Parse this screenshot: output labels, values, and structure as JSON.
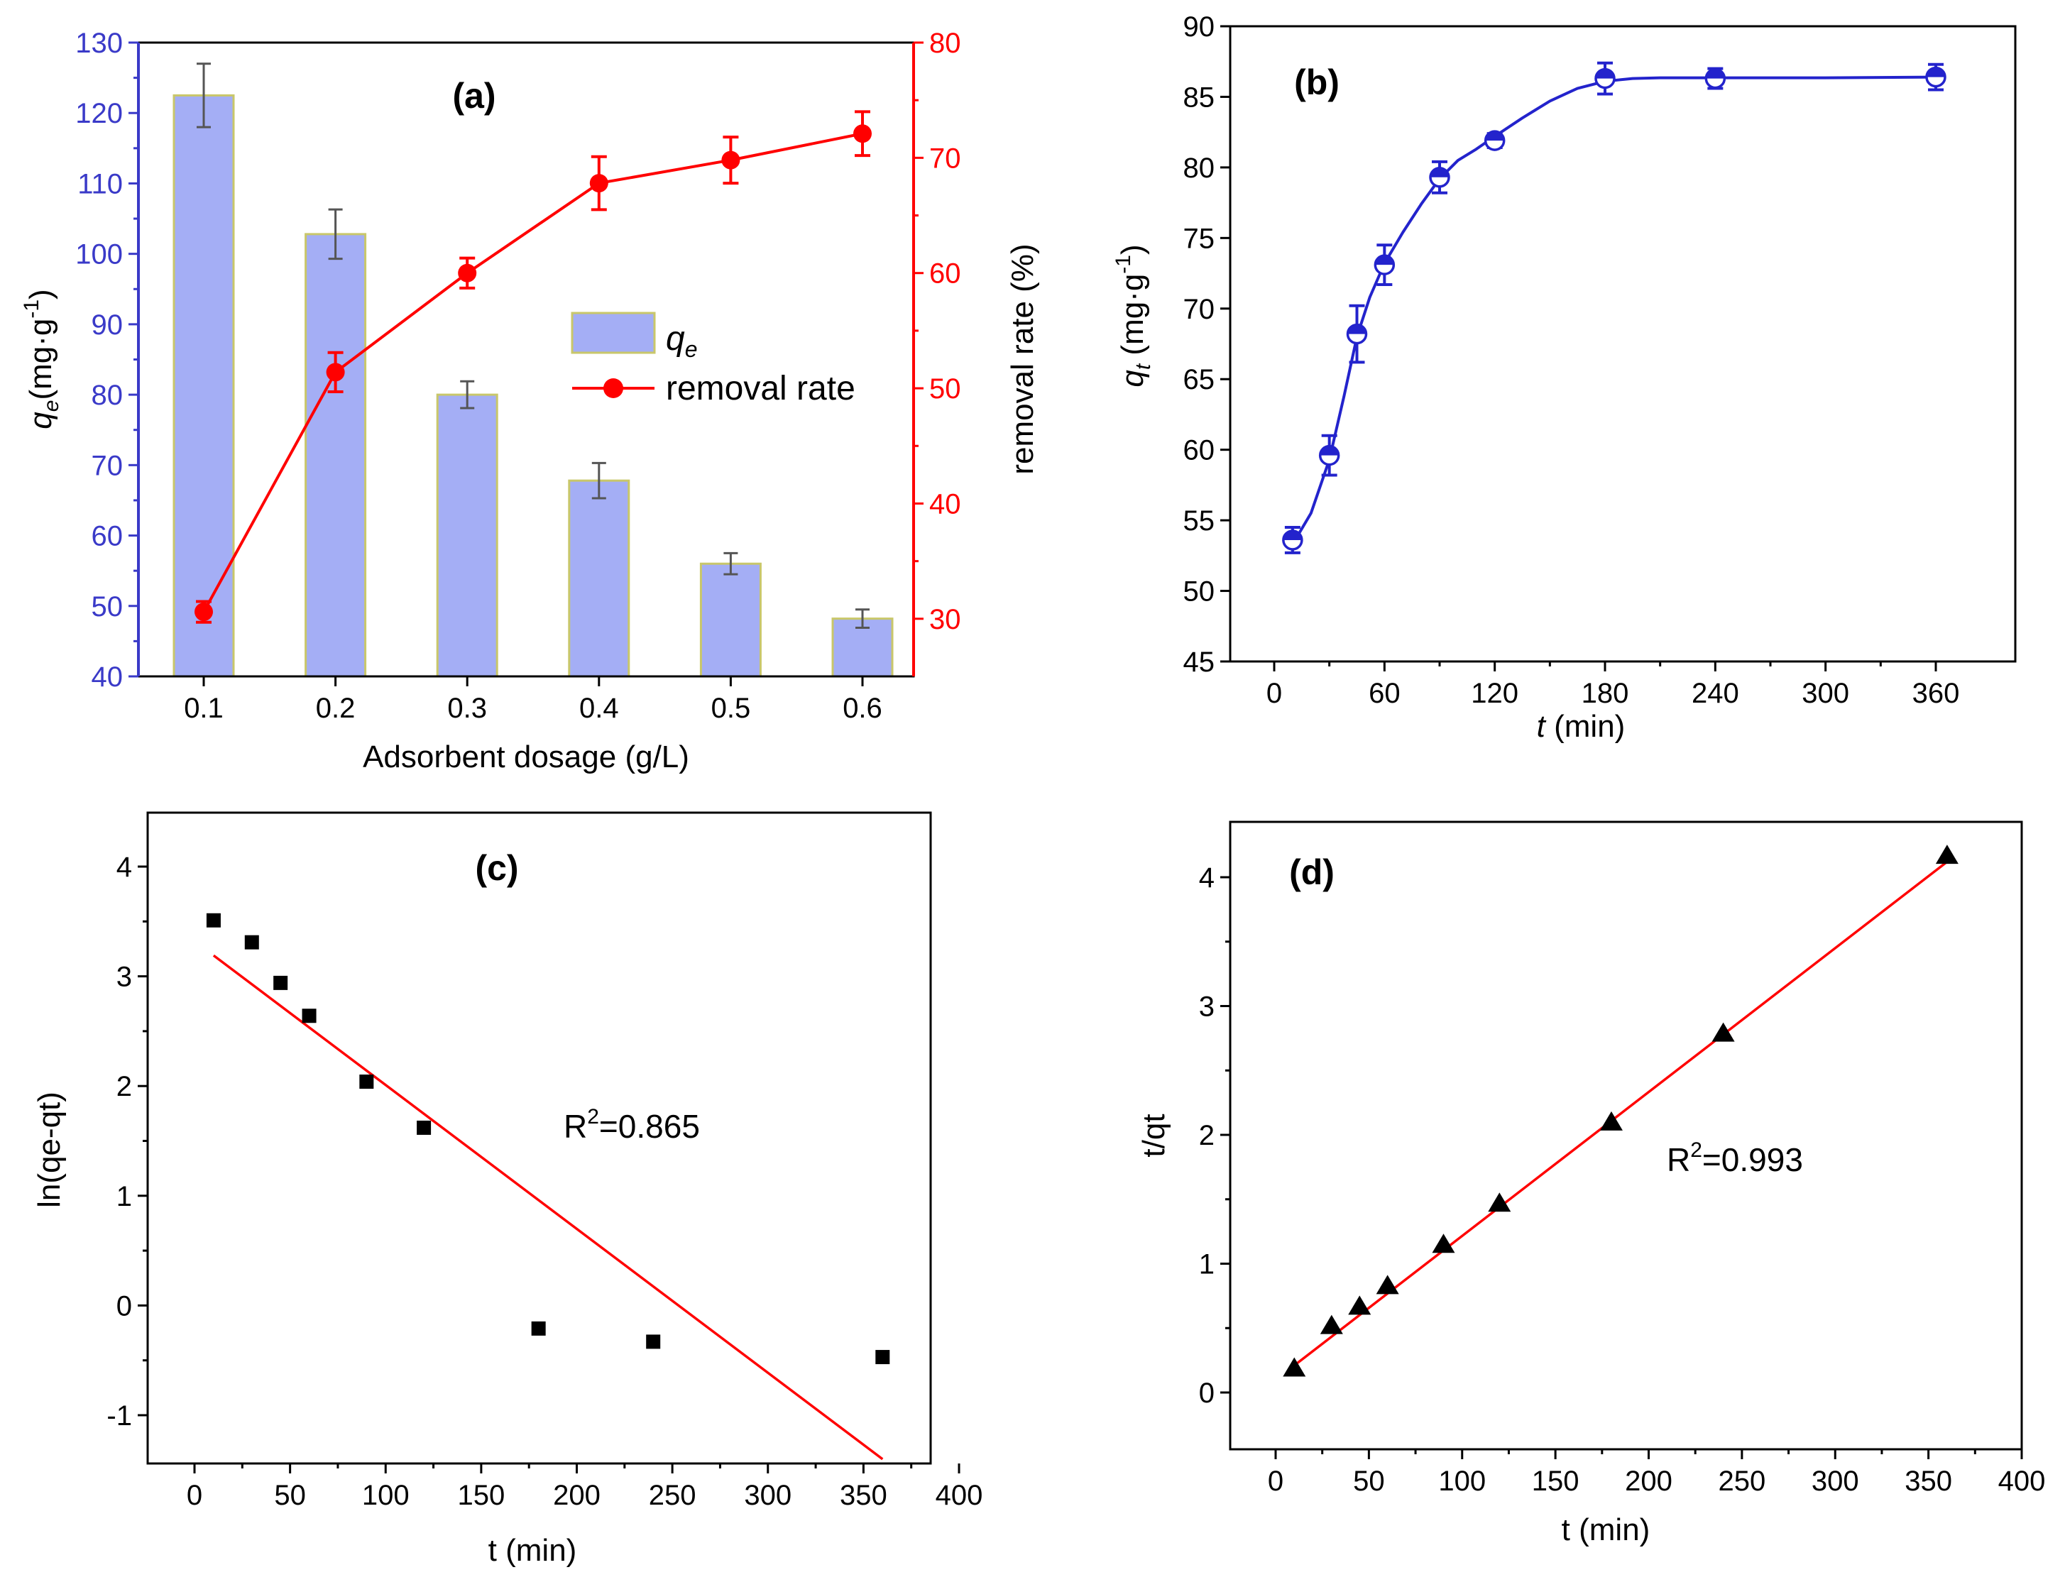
{
  "colors": {
    "blue": "#2323cc",
    "blue_axis": "#3a3ac8",
    "red": "#ff0000",
    "bar_fill": "#a4aef5",
    "bar_edge": "#c9c76a",
    "black": "#000000",
    "errbar_gray": "#555555"
  },
  "chart_data": [
    {
      "id": "a",
      "panel_label": "(a)",
      "type": "bar",
      "xlabel": "Adsorbent dosage (g/L)",
      "ylabel_italic": "q",
      "ylabel_sub": "e",
      "ylabel_rest": "(mg·g",
      "ylabel_sup": "-1",
      "ylabel_close": ")",
      "y2label": "removal rate (%)",
      "categories": [
        "0.1",
        "0.2",
        "0.3",
        "0.4",
        "0.5",
        "0.6"
      ],
      "ylim": [
        40,
        130
      ],
      "yticks": [
        "40",
        "50",
        "60",
        "70",
        "80",
        "90",
        "100",
        "110",
        "120",
        "130"
      ],
      "y2lim": [
        25,
        80
      ],
      "y2ticks": [
        "30",
        "40",
        "50",
        "60",
        "70",
        "80"
      ],
      "series": [
        {
          "name": "q",
          "name_sub": "e",
          "kind": "bar",
          "axis": "left",
          "values": [
            122.5,
            102.8,
            80.0,
            67.8,
            56.0,
            48.2
          ],
          "errors": [
            4.5,
            3.5,
            1.9,
            2.5,
            1.5,
            1.3
          ]
        },
        {
          "name": "removal rate",
          "kind": "line",
          "axis": "right",
          "values": [
            30.6,
            51.4,
            60.0,
            67.8,
            69.8,
            72.1
          ],
          "errors": [
            0.9,
            1.7,
            1.3,
            2.3,
            2.0,
            1.9
          ]
        }
      ]
    },
    {
      "id": "b",
      "panel_label": "(b)",
      "type": "scatter",
      "xlabel_italic": "t",
      "xlabel_rest": " (min)",
      "ylabel_italic": "q",
      "ylabel_sub": "t",
      "ylabel_rest": " (mg·g",
      "ylabel_sup": "-1",
      "ylabel_close": ")",
      "xlim": [
        -30,
        390
      ],
      "xticks": [
        "0",
        "60",
        "120",
        "180",
        "240",
        "300",
        "360"
      ],
      "ylim": [
        45,
        90
      ],
      "yticks": [
        "45",
        "50",
        "55",
        "60",
        "65",
        "70",
        "75",
        "80",
        "85",
        "90"
      ],
      "x": [
        10,
        30,
        45,
        60,
        90,
        120,
        180,
        240,
        360
      ],
      "y": [
        53.6,
        59.6,
        68.2,
        73.1,
        79.3,
        81.9,
        86.3,
        86.3,
        86.4
      ],
      "errors": [
        0.9,
        1.4,
        2.0,
        1.4,
        1.1,
        0.5,
        1.1,
        0.7,
        0.9
      ],
      "fit": {
        "x": [
          10,
          20,
          30,
          38,
          45,
          52,
          60,
          70,
          80,
          90,
          100,
          110,
          120,
          135,
          150,
          165,
          180,
          195,
          210,
          240,
          300,
          360
        ],
        "y": [
          53.3,
          55.5,
          59.3,
          63.8,
          68.0,
          70.8,
          73.2,
          75.4,
          77.4,
          79.2,
          80.5,
          81.3,
          82.2,
          83.5,
          84.7,
          85.6,
          86.1,
          86.3,
          86.35,
          86.35,
          86.35,
          86.4
        ]
      }
    },
    {
      "id": "c",
      "panel_label": "(c)",
      "type": "scatter",
      "xlabel": "t (min)",
      "ylabel": "ln(qe-qt)",
      "annotation_base": "R",
      "annotation_sup": "2",
      "annotation_value": "=0.865",
      "xlim": [
        -25,
        400
      ],
      "xticks": [
        "0",
        "50",
        "100",
        "150",
        "200",
        "250",
        "300",
        "350",
        "400"
      ],
      "ylim": [
        -1.5,
        4.45
      ],
      "yticks": [
        "-1",
        "0",
        "1",
        "2",
        "3",
        "4"
      ],
      "x": [
        10,
        30,
        45,
        60,
        90,
        120,
        180,
        240,
        360
      ],
      "y": [
        3.51,
        3.31,
        2.94,
        2.64,
        2.04,
        1.62,
        -0.21,
        -0.33,
        -0.47
      ],
      "fit_line": {
        "x": [
          10,
          360
        ],
        "y": [
          3.19,
          -1.4
        ]
      }
    },
    {
      "id": "d",
      "panel_label": "(d)",
      "type": "scatter",
      "xlabel": "t (min)",
      "ylabel": "t/qt",
      "annotation_base": "R",
      "annotation_sup": "2",
      "annotation_value": "=0.993",
      "xlim": [
        -25,
        400
      ],
      "xticks": [
        "0",
        "50",
        "100",
        "150",
        "200",
        "250",
        "300",
        "350",
        "400"
      ],
      "ylim": [
        -0.5,
        4.45
      ],
      "yticks": [
        "0",
        "1",
        "2",
        "3",
        "4"
      ],
      "x": [
        10,
        30,
        45,
        60,
        90,
        120,
        180,
        240,
        360
      ],
      "y": [
        0.19,
        0.52,
        0.67,
        0.83,
        1.15,
        1.47,
        2.1,
        2.79,
        4.17
      ],
      "fit_line": {
        "x": [
          10,
          360
        ],
        "y": [
          0.21,
          4.12
        ]
      }
    }
  ]
}
